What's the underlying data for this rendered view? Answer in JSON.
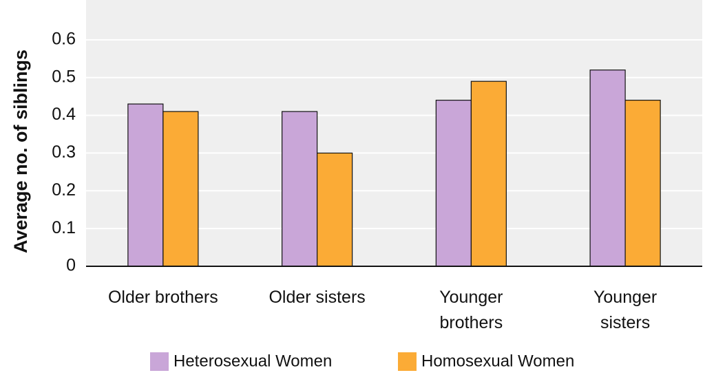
{
  "chart_data": {
    "type": "bar",
    "y_label": "Average no. of siblings",
    "categories": [
      "Older brothers",
      "Older sisters",
      "Younger\nbrothers",
      "Younger\nsisters"
    ],
    "series": [
      {
        "name": "Heterosexual Women",
        "color": "#c9a6d8",
        "values": [
          0.43,
          0.41,
          0.44,
          0.52
        ]
      },
      {
        "name": "Homosexual Women",
        "color": "#fbab36",
        "values": [
          0.41,
          0.3,
          0.49,
          0.44
        ]
      }
    ],
    "ylim": [
      0,
      0.7
    ],
    "yticks": [
      0,
      0.1,
      0.2,
      0.3,
      0.4,
      0.5,
      0.6
    ],
    "grid": true
  }
}
